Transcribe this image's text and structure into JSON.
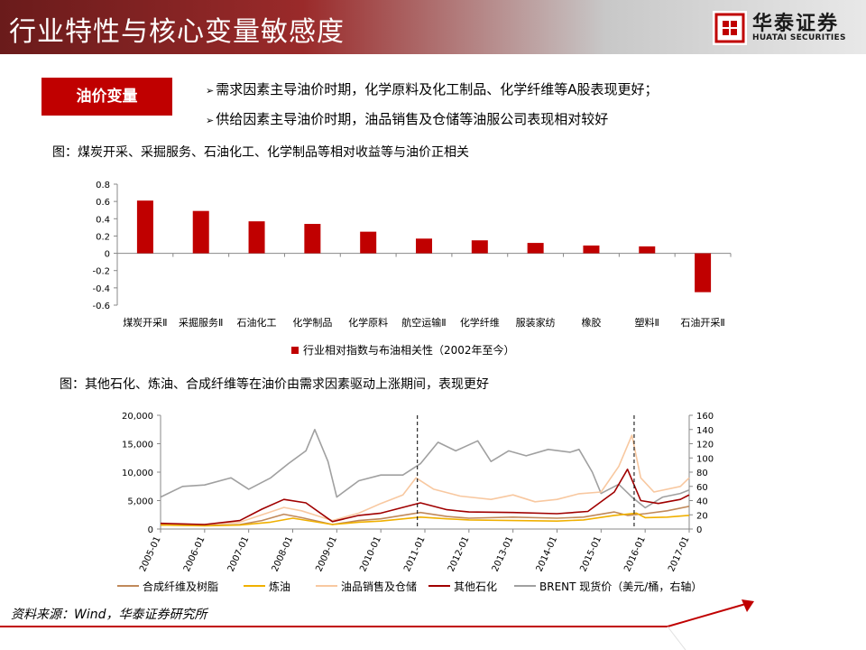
{
  "header": {
    "title": "行业特性与核心变量敏感度"
  },
  "logo": {
    "name_cn": "华泰证券",
    "name_en": "HUATAI SECURITIES"
  },
  "tag": {
    "label": "油价变量"
  },
  "bullets": [
    "需求因素主导油价时期，化学原料及化工制品、化学纤维等A股表现更好；",
    "供给因素主导油价时期，油品销售及仓储等油服公司表现相对较好"
  ],
  "captions": {
    "chart1": "图：煤炭开采、采掘服务、石油化工、化学制品等相对收益等与油价正相关",
    "chart2": "图：其他石化、炼油、合成纤维等在油价由需求因素驱动上涨期间，表现更好"
  },
  "source": "资料来源：Wind，华泰证券研究所",
  "chart_data": [
    {
      "type": "bar",
      "categories": [
        "煤炭开采Ⅱ",
        "采掘服务Ⅱ",
        "石油化工",
        "化学制品",
        "化学原料",
        "航空运输Ⅱ",
        "化学纤维",
        "服装家纺",
        "橡胶",
        "塑料Ⅱ",
        "石油开采Ⅱ"
      ],
      "series": [
        {
          "name": "行业相对指数与布油相关性（2002年至今）",
          "values": [
            0.61,
            0.49,
            0.37,
            0.34,
            0.25,
            0.17,
            0.15,
            0.12,
            0.09,
            0.08,
            -0.45
          ],
          "color": "#c00000"
        }
      ],
      "ylim": [
        -0.6,
        0.8
      ],
      "yticks": [
        "-0.6",
        "-0.4",
        "-0.2",
        "0",
        "0.2",
        "0.4",
        "0.6",
        "0.8"
      ],
      "legend_position": "bottom"
    },
    {
      "type": "line",
      "x_ticks": [
        "2005-01",
        "2006-01",
        "2007-01",
        "2008-01",
        "2009-01",
        "2010-01",
        "2011-01",
        "2012-01",
        "2013-01",
        "2014-01",
        "2015-01",
        "2016-01",
        "2017-01"
      ],
      "x_range": [
        2005.0,
        2017.0
      ],
      "ylim_left": [
        0,
        20000
      ],
      "yticks_left": [
        "0",
        "5,000",
        "10,000",
        "15,000",
        "20,000"
      ],
      "ylim_right": [
        0,
        160
      ],
      "yticks_right": [
        "0",
        "20",
        "40",
        "60",
        "80",
        "100",
        "120",
        "140",
        "160"
      ],
      "vlines": [
        2010.83,
        2015.75
      ],
      "legend_position": "bottom",
      "series": [
        {
          "name": "合成纤维及树脂",
          "axis": "left",
          "color": "#c0895a",
          "points": [
            [
              2005.0,
              700
            ],
            [
              2006.0,
              600
            ],
            [
              2006.8,
              800
            ],
            [
              2007.3,
              1500
            ],
            [
              2007.8,
              2600
            ],
            [
              2008.2,
              2000
            ],
            [
              2008.9,
              800
            ],
            [
              2009.5,
              1500
            ],
            [
              2010.0,
              1800
            ],
            [
              2010.9,
              2900
            ],
            [
              2011.5,
              2200
            ],
            [
              2012.0,
              1900
            ],
            [
              2013.0,
              2100
            ],
            [
              2014.0,
              1900
            ],
            [
              2014.6,
              2100
            ],
            [
              2015.3,
              3000
            ],
            [
              2015.6,
              2400
            ],
            [
              2016.0,
              2700
            ],
            [
              2016.5,
              3200
            ],
            [
              2017.0,
              4000
            ]
          ]
        },
        {
          "name": "炼油",
          "axis": "left",
          "color": "#f0b000",
          "points": [
            [
              2005.0,
              700
            ],
            [
              2006.0,
              550
            ],
            [
              2006.8,
              700
            ],
            [
              2007.5,
              1200
            ],
            [
              2008.0,
              1900
            ],
            [
              2008.9,
              800
            ],
            [
              2009.5,
              1200
            ],
            [
              2010.0,
              1400
            ],
            [
              2010.9,
              2100
            ],
            [
              2011.5,
              1800
            ],
            [
              2012.0,
              1600
            ],
            [
              2013.0,
              1500
            ],
            [
              2014.0,
              1400
            ],
            [
              2014.6,
              1600
            ],
            [
              2015.3,
              2400
            ],
            [
              2015.8,
              2800
            ],
            [
              2016.0,
              2000
            ],
            [
              2016.5,
              2100
            ],
            [
              2017.0,
              2400
            ]
          ]
        },
        {
          "name": "油品销售及仓储",
          "axis": "left",
          "color": "#f8c8a0",
          "points": [
            [
              2005.0,
              900
            ],
            [
              2006.0,
              800
            ],
            [
              2006.8,
              1200
            ],
            [
              2007.3,
              2500
            ],
            [
              2007.8,
              3800
            ],
            [
              2008.2,
              3200
            ],
            [
              2008.9,
              1500
            ],
            [
              2009.5,
              2800
            ],
            [
              2010.0,
              4500
            ],
            [
              2010.5,
              6000
            ],
            [
              2010.8,
              9000
            ],
            [
              2011.2,
              7000
            ],
            [
              2011.8,
              5800
            ],
            [
              2012.5,
              5200
            ],
            [
              2013.0,
              6000
            ],
            [
              2013.5,
              4800
            ],
            [
              2014.0,
              5200
            ],
            [
              2014.5,
              6200
            ],
            [
              2015.0,
              6500
            ],
            [
              2015.4,
              11000
            ],
            [
              2015.7,
              16500
            ],
            [
              2015.9,
              9000
            ],
            [
              2016.2,
              6500
            ],
            [
              2016.8,
              7500
            ],
            [
              2017.0,
              9000
            ]
          ]
        },
        {
          "name": "其他石化",
          "axis": "left",
          "color": "#a00000",
          "points": [
            [
              2005.0,
              1000
            ],
            [
              2006.0,
              800
            ],
            [
              2006.8,
              1500
            ],
            [
              2007.3,
              3500
            ],
            [
              2007.8,
              5200
            ],
            [
              2008.3,
              4600
            ],
            [
              2008.9,
              1300
            ],
            [
              2009.5,
              2400
            ],
            [
              2010.0,
              2800
            ],
            [
              2010.9,
              4600
            ],
            [
              2011.5,
              3400
            ],
            [
              2012.0,
              3000
            ],
            [
              2013.0,
              2900
            ],
            [
              2014.0,
              2700
            ],
            [
              2014.7,
              3100
            ],
            [
              2015.3,
              6500
            ],
            [
              2015.6,
              10500
            ],
            [
              2015.9,
              5000
            ],
            [
              2016.3,
              4500
            ],
            [
              2016.8,
              5200
            ],
            [
              2017.0,
              6000
            ]
          ]
        },
        {
          "name": "BRENT 现货价（美元/桶，右轴）",
          "axis": "right",
          "color": "#a0a0a0",
          "points": [
            [
              2005.0,
              45
            ],
            [
              2005.5,
              60
            ],
            [
              2006.0,
              62
            ],
            [
              2006.6,
              72
            ],
            [
              2007.0,
              56
            ],
            [
              2007.5,
              72
            ],
            [
              2007.9,
              92
            ],
            [
              2008.3,
              110
            ],
            [
              2008.5,
              140
            ],
            [
              2008.8,
              95
            ],
            [
              2009.0,
              45
            ],
            [
              2009.5,
              68
            ],
            [
              2010.0,
              76
            ],
            [
              2010.5,
              76
            ],
            [
              2010.9,
              92
            ],
            [
              2011.3,
              122
            ],
            [
              2011.7,
              110
            ],
            [
              2012.2,
              124
            ],
            [
              2012.5,
              95
            ],
            [
              2012.9,
              110
            ],
            [
              2013.3,
              103
            ],
            [
              2013.8,
              112
            ],
            [
              2014.3,
              108
            ],
            [
              2014.5,
              112
            ],
            [
              2014.8,
              80
            ],
            [
              2015.0,
              50
            ],
            [
              2015.4,
              63
            ],
            [
              2015.7,
              45
            ],
            [
              2016.0,
              30
            ],
            [
              2016.4,
              45
            ],
            [
              2016.8,
              50
            ],
            [
              2017.0,
              55
            ]
          ]
        }
      ]
    }
  ]
}
